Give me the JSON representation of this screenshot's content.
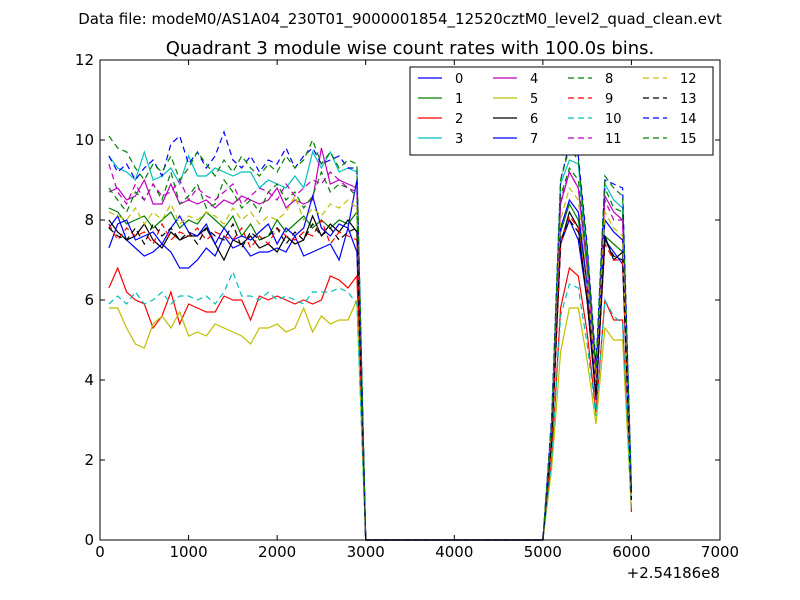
{
  "figure": {
    "file_line": "Data file: modeM0/AS1A04_230T01_9000001854_12520cztM0_level2_quad_clean.evt",
    "title": "Quadrant 3 module wise count rates with 100.0s bins."
  },
  "chart_data": {
    "type": "line",
    "title": "Quadrant 3 module wise count rates with 100.0s bins.",
    "xlabel": "",
    "ylabel": "",
    "x_offset_label": "+2.54186e8",
    "xlim": [
      0,
      7000
    ],
    "ylim": [
      0,
      12
    ],
    "xticks": [
      0,
      1000,
      2000,
      3000,
      4000,
      5000,
      6000,
      7000
    ],
    "xtick_labels": [
      "0",
      "1000",
      "2000",
      "3000",
      "4000",
      "5000",
      "6000",
      "7000"
    ],
    "yticks": [
      0,
      2,
      4,
      6,
      8,
      10,
      12
    ],
    "ytick_labels": [
      "0",
      "2",
      "4",
      "6",
      "8",
      "10",
      "12"
    ],
    "grid": false,
    "legend_position": "top-right",
    "legend_columns": 4,
    "x": [
      100,
      200,
      300,
      400,
      500,
      600,
      700,
      800,
      900,
      1000,
      1100,
      1200,
      1300,
      1400,
      1500,
      1600,
      1700,
      1800,
      1900,
      2000,
      2100,
      2200,
      2300,
      2400,
      2500,
      2600,
      2700,
      2800,
      2900,
      3000,
      5000,
      5100,
      5200,
      5300,
      5400,
      5500,
      5600,
      5700,
      5800,
      5900,
      6000
    ],
    "series": [
      {
        "name": "0",
        "color": "#0000ff",
        "dash": "solid",
        "values": [
          7.8,
          8.1,
          7.5,
          7.3,
          7.1,
          7.2,
          7.4,
          7.2,
          6.8,
          6.8,
          7.0,
          7.3,
          7.1,
          7.6,
          7.3,
          7.4,
          7.1,
          7.2,
          7.2,
          7.3,
          7.2,
          7.6,
          7.1,
          7.2,
          7.3,
          7.4,
          7.0,
          7.8,
          7.2,
          0.0,
          0.0,
          2.5,
          7.4,
          8.0,
          7.5,
          6.0,
          3.5,
          7.5,
          7.2,
          6.9,
          1.0
        ]
      },
      {
        "name": "1",
        "color": "#008000",
        "dash": "solid",
        "values": [
          8.3,
          8.2,
          7.9,
          8.0,
          8.1,
          7.8,
          8.0,
          8.2,
          7.8,
          8.0,
          7.9,
          8.2,
          8.0,
          7.8,
          8.1,
          7.6,
          7.9,
          7.5,
          7.6,
          8.0,
          7.7,
          7.9,
          8.1,
          7.8,
          8.0,
          7.8,
          8.0,
          7.9,
          8.2,
          0.0,
          0.0,
          2.5,
          7.7,
          8.4,
          8.0,
          6.4,
          3.8,
          7.6,
          7.4,
          7.2,
          1.0
        ]
      },
      {
        "name": "2",
        "color": "#ff0000",
        "dash": "solid",
        "values": [
          6.3,
          6.8,
          6.2,
          6.0,
          5.9,
          5.3,
          5.6,
          6.2,
          5.4,
          5.9,
          5.8,
          5.7,
          5.7,
          6.1,
          6.0,
          6.0,
          5.5,
          6.1,
          6.0,
          6.1,
          6.0,
          5.9,
          6.0,
          5.9,
          6.0,
          6.6,
          6.5,
          6.3,
          6.6,
          0.0,
          0.0,
          2.0,
          5.8,
          6.8,
          6.6,
          5.2,
          3.2,
          6.0,
          5.5,
          5.5,
          0.7
        ]
      },
      {
        "name": "3",
        "color": "#00bfbf",
        "dash": "solid",
        "values": [
          9.6,
          9.3,
          9.2,
          9.0,
          9.7,
          9.0,
          9.1,
          9.3,
          8.9,
          9.6,
          9.1,
          9.1,
          9.3,
          9.2,
          9.1,
          9.2,
          9.2,
          8.8,
          9.0,
          8.9,
          8.8,
          9.1,
          8.8,
          9.7,
          9.3,
          9.7,
          9.2,
          9.3,
          9.2,
          0.0,
          0.0,
          3.0,
          8.9,
          9.5,
          9.4,
          7.0,
          4.2,
          8.9,
          8.5,
          8.3,
          1.2
        ]
      },
      {
        "name": "4",
        "color": "#bf00bf",
        "dash": "solid",
        "values": [
          8.7,
          8.8,
          8.5,
          8.6,
          9.0,
          8.4,
          8.4,
          8.9,
          8.4,
          8.5,
          8.4,
          8.5,
          8.3,
          8.5,
          8.4,
          8.6,
          8.5,
          8.4,
          8.5,
          8.8,
          8.3,
          8.5,
          8.4,
          8.5,
          9.8,
          8.9,
          9.0,
          8.9,
          8.8,
          0.0,
          0.0,
          2.8,
          8.4,
          9.2,
          8.8,
          6.8,
          4.0,
          8.6,
          8.2,
          8.0,
          1.1
        ]
      },
      {
        "name": "5",
        "color": "#bfbf00",
        "dash": "solid",
        "values": [
          5.8,
          5.8,
          5.3,
          4.9,
          4.8,
          5.4,
          5.6,
          5.3,
          5.7,
          5.1,
          5.2,
          5.1,
          5.4,
          5.3,
          5.2,
          5.1,
          4.9,
          5.3,
          5.3,
          5.4,
          5.2,
          5.3,
          5.8,
          5.2,
          5.6,
          5.4,
          5.5,
          5.5,
          6.0,
          0.0,
          0.0,
          1.8,
          4.7,
          5.8,
          5.8,
          4.5,
          2.9,
          5.3,
          5.0,
          5.0,
          0.8
        ]
      },
      {
        "name": "6",
        "color": "#000000",
        "dash": "solid",
        "values": [
          8.0,
          7.7,
          7.5,
          7.6,
          7.9,
          7.5,
          7.3,
          7.7,
          7.5,
          7.6,
          7.6,
          7.8,
          7.4,
          7.0,
          7.5,
          7.4,
          7.6,
          7.3,
          7.4,
          7.2,
          7.6,
          7.4,
          7.5,
          8.1,
          7.6,
          7.9,
          7.7,
          8.0,
          7.7,
          0.0,
          0.0,
          2.5,
          7.4,
          8.2,
          7.8,
          6.0,
          3.7,
          7.6,
          7.0,
          7.2,
          1.0
        ]
      },
      {
        "name": "7",
        "color": "#0000ff",
        "dash": "solid",
        "values": [
          7.3,
          7.9,
          8.0,
          7.5,
          7.6,
          7.7,
          7.4,
          7.8,
          8.1,
          7.7,
          7.6,
          7.9,
          7.4,
          7.8,
          7.5,
          7.6,
          7.5,
          7.7,
          7.9,
          7.4,
          7.8,
          7.6,
          7.8,
          8.6,
          7.8,
          7.6,
          7.9,
          7.8,
          9.0,
          0.0,
          0.0,
          2.7,
          7.8,
          8.5,
          8.2,
          6.4,
          4.0,
          8.0,
          7.7,
          7.5,
          1.1
        ]
      },
      {
        "name": "8",
        "color": "#008000",
        "dash": "dashed",
        "values": [
          8.8,
          8.5,
          8.2,
          8.7,
          8.5,
          8.9,
          8.5,
          9.2,
          8.4,
          8.6,
          8.9,
          8.3,
          8.4,
          9.0,
          8.7,
          8.3,
          8.5,
          8.2,
          8.7,
          8.9,
          8.5,
          8.7,
          8.3,
          8.6,
          9.2,
          8.7,
          8.9,
          8.8,
          8.6,
          0.0,
          0.0,
          2.9,
          8.6,
          9.3,
          9.0,
          7.0,
          4.2,
          8.8,
          8.3,
          8.2,
          1.2
        ]
      },
      {
        "name": "9",
        "color": "#ff0000",
        "dash": "dashed",
        "values": [
          7.9,
          7.5,
          7.8,
          7.6,
          7.7,
          7.4,
          7.9,
          7.5,
          7.7,
          7.6,
          7.8,
          7.5,
          7.7,
          7.6,
          7.5,
          7.8,
          7.3,
          7.6,
          7.4,
          7.8,
          7.6,
          7.5,
          7.7,
          7.6,
          8.0,
          7.4,
          7.7,
          7.6,
          7.5,
          0.0,
          0.0,
          2.4,
          7.4,
          8.1,
          7.8,
          6.1,
          3.6,
          7.4,
          7.0,
          7.0,
          1.0
        ]
      },
      {
        "name": "10",
        "color": "#00bfbf",
        "dash": "dashed",
        "values": [
          5.9,
          6.1,
          5.9,
          6.2,
          5.9,
          6.0,
          6.2,
          5.9,
          6.1,
          6.1,
          6.0,
          6.1,
          5.9,
          6.2,
          6.7,
          6.1,
          6.1,
          6.0,
          6.2,
          6.0,
          6.1,
          6.0,
          5.9,
          6.2,
          6.2,
          6.2,
          6.3,
          6.2,
          5.9,
          0.0,
          0.0,
          2.0,
          5.6,
          6.4,
          6.3,
          4.9,
          3.1,
          6.0,
          5.6,
          5.4,
          0.8
        ]
      },
      {
        "name": "11",
        "color": "#bf00bf",
        "dash": "dashed",
        "values": [
          9.4,
          8.7,
          8.4,
          8.9,
          8.5,
          8.9,
          8.6,
          8.7,
          9.0,
          8.5,
          8.8,
          8.6,
          8.5,
          8.7,
          8.9,
          8.4,
          8.6,
          8.8,
          8.7,
          8.5,
          8.9,
          8.6,
          8.8,
          9.0,
          8.9,
          9.2,
          9.0,
          8.8,
          8.7,
          0.0,
          0.0,
          2.8,
          8.5,
          9.2,
          8.8,
          6.8,
          4.0,
          8.5,
          8.0,
          8.0,
          1.1
        ]
      },
      {
        "name": "12",
        "color": "#bfbf00",
        "dash": "dashed",
        "values": [
          8.2,
          8.1,
          8.0,
          8.3,
          7.9,
          8.2,
          8.0,
          8.4,
          7.9,
          8.1,
          8.0,
          8.2,
          8.1,
          7.9,
          8.3,
          8.0,
          8.2,
          7.9,
          8.1,
          8.0,
          8.2,
          8.6,
          8.0,
          8.3,
          8.1,
          8.4,
          8.3,
          8.5,
          8.3,
          0.0,
          0.0,
          2.7,
          8.0,
          8.8,
          8.5,
          6.6,
          3.9,
          8.2,
          7.8,
          7.6,
          1.1
        ]
      },
      {
        "name": "13",
        "color": "#000000",
        "dash": "dashed",
        "values": [
          7.8,
          7.6,
          7.5,
          7.8,
          7.4,
          7.9,
          7.6,
          7.8,
          7.5,
          7.7,
          7.4,
          7.8,
          7.6,
          7.5,
          7.9,
          7.3,
          7.7,
          7.5,
          7.6,
          7.8,
          7.4,
          7.7,
          7.5,
          7.9,
          7.6,
          7.8,
          7.5,
          7.7,
          7.8,
          0.0,
          0.0,
          2.5,
          7.5,
          8.0,
          7.7,
          6.0,
          3.6,
          7.5,
          7.1,
          7.0,
          1.0
        ]
      },
      {
        "name": "14",
        "color": "#0000ff",
        "dash": "dashed",
        "values": [
          9.6,
          9.2,
          9.4,
          9.0,
          9.3,
          9.5,
          9.1,
          9.9,
          10.1,
          9.4,
          9.7,
          9.3,
          9.6,
          10.2,
          9.5,
          9.3,
          9.6,
          9.2,
          9.5,
          9.4,
          9.8,
          9.3,
          9.6,
          9.8,
          9.4,
          9.5,
          9.6,
          9.3,
          9.3,
          0.0,
          0.0,
          3.1,
          9.0,
          9.9,
          9.6,
          7.4,
          4.4,
          9.0,
          8.9,
          8.8,
          1.3
        ]
      },
      {
        "name": "15",
        "color": "#008000",
        "dash": "dashed",
        "values": [
          10.1,
          9.8,
          9.7,
          9.3,
          9.0,
          9.4,
          9.2,
          9.6,
          9.0,
          9.3,
          9.7,
          9.4,
          9.1,
          9.5,
          9.2,
          9.6,
          9.3,
          9.1,
          9.4,
          9.2,
          9.6,
          9.3,
          9.5,
          10.0,
          9.4,
          9.7,
          9.3,
          9.5,
          9.4,
          0.0,
          0.0,
          3.0,
          9.0,
          9.8,
          9.5,
          7.3,
          4.3,
          9.1,
          8.8,
          8.6,
          1.3
        ]
      }
    ]
  }
}
